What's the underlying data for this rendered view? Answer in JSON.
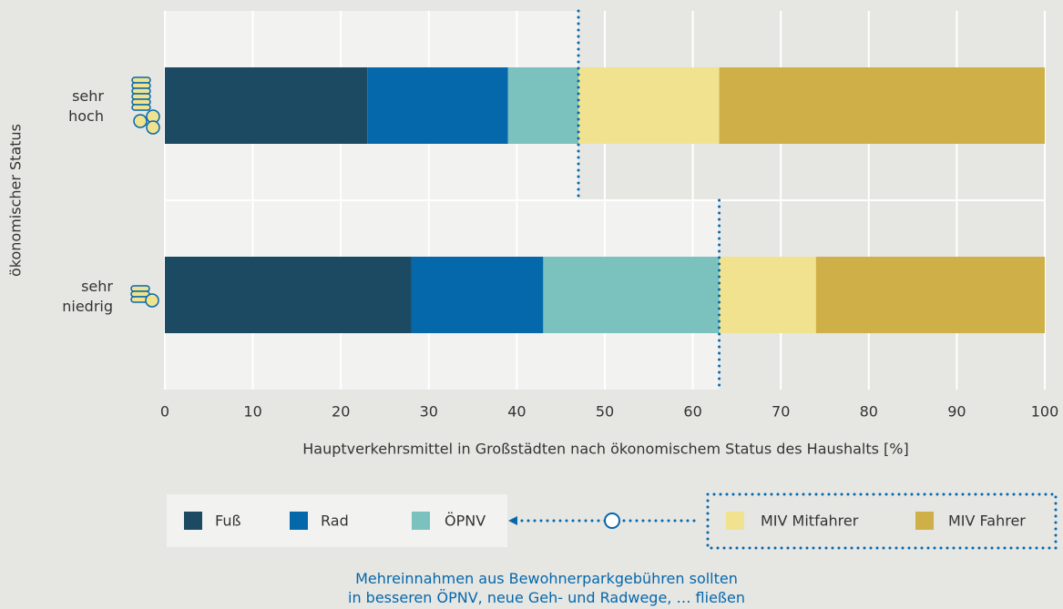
{
  "chart_data": {
    "type": "stacked-bar-horizontal",
    "y_label": "ökonomischer Status",
    "x_label": "Hauptverkehrsmittel in Großstädten nach ökonomischem Status des Haushalts [%]",
    "categories": [
      "sehr hoch",
      "sehr niedrig"
    ],
    "series": [
      {
        "name": "Fuß",
        "color": "#1d4a63",
        "values": [
          23,
          28
        ]
      },
      {
        "name": "Rad",
        "color": "#0568ab",
        "values": [
          16,
          15
        ]
      },
      {
        "name": "ÖPNV",
        "color": "#7bc1bd",
        "values": [
          8,
          20
        ]
      },
      {
        "name": "MIV Mitfahrer",
        "color": "#f0e28e",
        "values": [
          16,
          11
        ]
      },
      {
        "name": "MIV Fahrer",
        "color": "#cfb048",
        "values": [
          37,
          26
        ]
      }
    ],
    "xlim": [
      0,
      100
    ],
    "xticks": [
      0,
      10,
      20,
      30,
      40,
      50,
      60,
      70,
      80,
      90,
      100
    ],
    "grid": true,
    "annotation": [
      "Mehreinnahmen aus Bewohnerparkgebühren sollten",
      "in besseren ÖPNV, neue Geh- und Radwege, … fließen"
    ]
  }
}
